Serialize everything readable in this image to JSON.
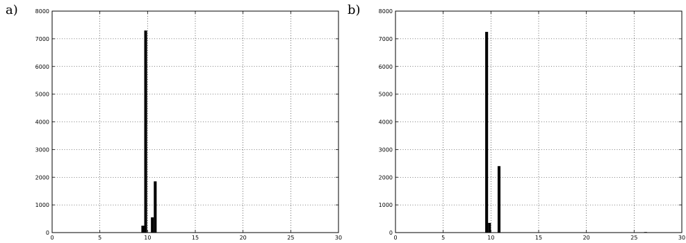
{
  "panels": [
    {
      "label": "a)"
    },
    {
      "label": "b)"
    }
  ],
  "chart_data": [
    {
      "type": "bar",
      "title": "",
      "xlabel": "",
      "ylabel": "",
      "xlim": [
        0,
        30
      ],
      "ylim": [
        0,
        8000
      ],
      "xticks": [
        0,
        5,
        10,
        15,
        20,
        25,
        30
      ],
      "yticks": [
        0,
        1000,
        2000,
        3000,
        4000,
        5000,
        6000,
        7000,
        8000
      ],
      "grid": true,
      "bar_width": 0.3,
      "bar_color": "#000000",
      "x": [
        9.5,
        9.8,
        10.5,
        10.8
      ],
      "values": [
        250,
        7300,
        550,
        1850
      ]
    },
    {
      "type": "bar",
      "title": "",
      "xlabel": "",
      "ylabel": "",
      "xlim": [
        0,
        30
      ],
      "ylim": [
        0,
        8000
      ],
      "xticks": [
        0,
        5,
        10,
        15,
        20,
        25,
        30
      ],
      "yticks": [
        0,
        1000,
        2000,
        3000,
        4000,
        5000,
        6000,
        7000,
        8000
      ],
      "grid": true,
      "bar_width": 0.3,
      "bar_color": "#000000",
      "x": [
        9.55,
        9.85,
        10.85,
        26.2
      ],
      "values": [
        7250,
        350,
        2400,
        15
      ]
    }
  ]
}
